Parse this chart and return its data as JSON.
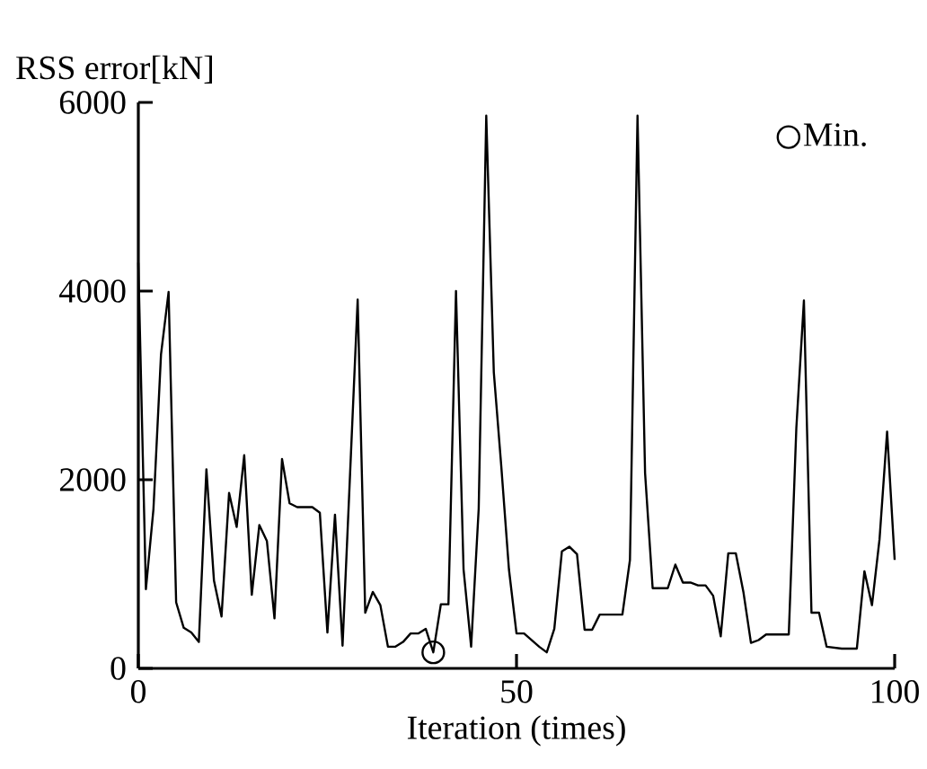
{
  "chart_data": {
    "type": "line",
    "xlabel": "Iteration (times)",
    "ylabel": "RSS error[kN]",
    "xlim": [
      0,
      100
    ],
    "ylim": [
      0,
      6000
    ],
    "xticks": [
      0,
      50,
      100
    ],
    "yticks": [
      0,
      2000,
      4000,
      6000
    ],
    "grid": false,
    "legend": "top right",
    "line_style": "solid",
    "series": [
      {
        "color": "#000000",
        "x": [
          0,
          1,
          2,
          3,
          4,
          5,
          6,
          7,
          8,
          9,
          10,
          11,
          12,
          13,
          14,
          15,
          16,
          17,
          18,
          19,
          20,
          21,
          22,
          23,
          24,
          25,
          26,
          27,
          28,
          29,
          30,
          31,
          32,
          33,
          34,
          35,
          36,
          37,
          38,
          39,
          40,
          41,
          42,
          43,
          44,
          45,
          46,
          47,
          48,
          49,
          50,
          51,
          52,
          53,
          54,
          55,
          56,
          57,
          58,
          59,
          60,
          61,
          62,
          63,
          64,
          65,
          66,
          67,
          68,
          69,
          70,
          71,
          72,
          73,
          74,
          75,
          76,
          77,
          78,
          79,
          80,
          81,
          82,
          83,
          84,
          85,
          86,
          87,
          88,
          89,
          90,
          91,
          92,
          93,
          94,
          95,
          96,
          97,
          98,
          99,
          100
        ],
        "values": [
          4300,
          840,
          1690,
          3330,
          3990,
          700,
          430,
          380,
          280,
          2110,
          930,
          550,
          1860,
          1500,
          2260,
          780,
          1520,
          1350,
          530,
          2220,
          1750,
          1710,
          1710,
          1710,
          1650,
          380,
          1630,
          240,
          2070,
          3910,
          590,
          810,
          670,
          230,
          230,
          280,
          370,
          370,
          420,
          170,
          680,
          680,
          4000,
          1050,
          230,
          1690,
          5860,
          3140,
          2130,
          1050,
          370,
          370,
          300,
          230,
          170,
          420,
          1240,
          1290,
          1210,
          410,
          410,
          570,
          570,
          570,
          570,
          1150,
          5860,
          2070,
          850,
          850,
          850,
          1100,
          910,
          910,
          880,
          880,
          770,
          340,
          1220,
          1220,
          810,
          270,
          300,
          360,
          360,
          360,
          360,
          2550,
          3900,
          590,
          590,
          230,
          220,
          210,
          210,
          210,
          1030,
          670,
          1370,
          2510,
          1150
        ]
      },
      {
        "type": "scatter",
        "name": "Min.",
        "color": "#000000",
        "marker": "circle",
        "x": [
          39
        ],
        "values": [
          170
        ]
      }
    ]
  }
}
